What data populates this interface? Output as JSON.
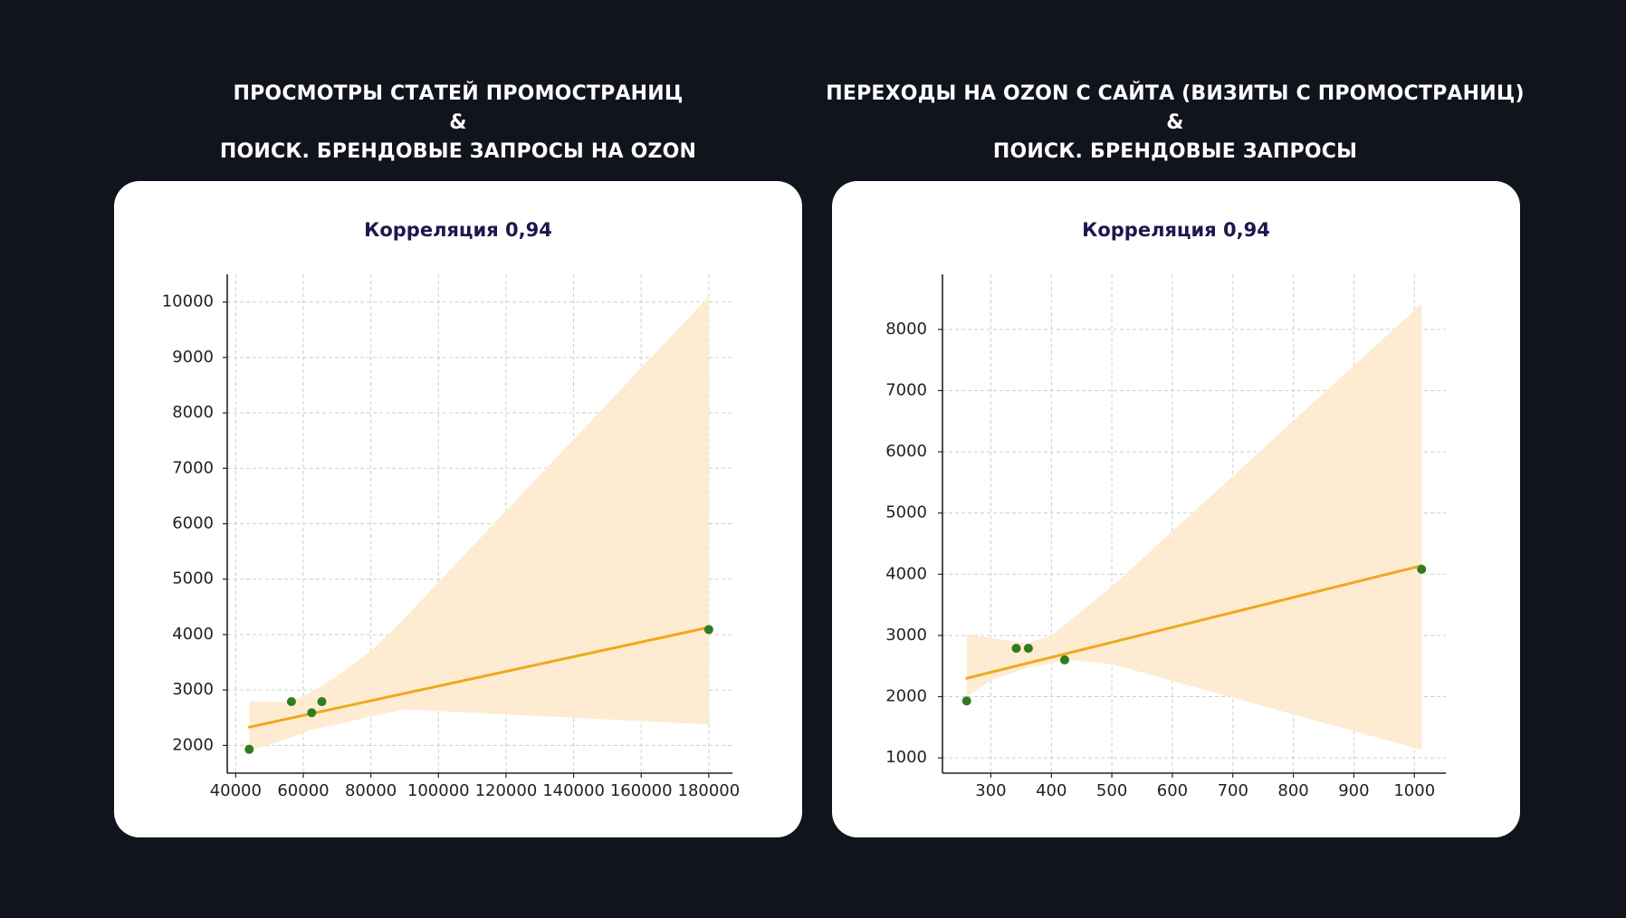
{
  "charts": [
    {
      "heading": {
        "line1": "ПРОСМОТРЫ СТАТЕЙ ПРОМОСТРАНИЦ",
        "line2": "&",
        "line3": "ПОИСК. БРЕНДОВЫЕ ЗАПРОСЫ НА OZON"
      },
      "title": "Корреляция 0,94"
    },
    {
      "heading": {
        "line1": "ПЕРЕХОДЫ НА OZON С САЙТА (ВИЗИТЫ С ПРОМОСТРАНИЦ)",
        "line2": "&",
        "line3": "ПОИСК. БРЕНДОВЫЕ ЗАПРОСЫ"
      },
      "title": "Корреляция 0,94"
    }
  ],
  "colors": {
    "background": "#11141c",
    "card": "#ffffff",
    "point": "#2e7d1f",
    "line": "#f0a81c",
    "band": "#fdebd0",
    "grid": "#cfcfcf",
    "title": "#1c1850"
  },
  "chart_data": [
    {
      "type": "scatter",
      "title": "Корреляция 0,94",
      "xlabel": "",
      "ylabel": "",
      "xlim": [
        37500,
        187000
      ],
      "ylim": [
        1500,
        10500
      ],
      "x_ticks": [
        40000,
        60000,
        80000,
        100000,
        120000,
        140000,
        160000,
        180000
      ],
      "y_ticks": [
        2000,
        3000,
        4000,
        5000,
        6000,
        7000,
        8000,
        9000,
        10000
      ],
      "grid": true,
      "points": [
        {
          "x": 44000,
          "y": 1930
        },
        {
          "x": 56500,
          "y": 2790
        },
        {
          "x": 62500,
          "y": 2590
        },
        {
          "x": 65500,
          "y": 2790
        },
        {
          "x": 180000,
          "y": 4090
        }
      ],
      "regression_line": [
        {
          "x": 44000,
          "y": 2330
        },
        {
          "x": 180000,
          "y": 4130
        }
      ],
      "confidence_band": {
        "upper": [
          {
            "x": 44000,
            "y": 2790
          },
          {
            "x": 50000,
            "y": 2790
          },
          {
            "x": 56000,
            "y": 2790
          },
          {
            "x": 62000,
            "y": 2950
          },
          {
            "x": 70000,
            "y": 3250
          },
          {
            "x": 80000,
            "y": 3700
          },
          {
            "x": 90000,
            "y": 4300
          },
          {
            "x": 180000,
            "y": 10100
          }
        ],
        "lower": [
          {
            "x": 180000,
            "y": 2380
          },
          {
            "x": 90000,
            "y": 2650
          },
          {
            "x": 80000,
            "y": 2520
          },
          {
            "x": 70000,
            "y": 2380
          },
          {
            "x": 62000,
            "y": 2280
          },
          {
            "x": 56000,
            "y": 2130
          },
          {
            "x": 50000,
            "y": 2020
          },
          {
            "x": 44000,
            "y": 1900
          }
        ]
      }
    },
    {
      "type": "scatter",
      "title": "Корреляция 0,94",
      "xlabel": "",
      "ylabel": "",
      "xlim": [
        220,
        1052
      ],
      "ylim": [
        750,
        8900
      ],
      "x_ticks": [
        300,
        400,
        500,
        600,
        700,
        800,
        900,
        1000
      ],
      "y_ticks": [
        1000,
        2000,
        3000,
        4000,
        5000,
        6000,
        7000,
        8000
      ],
      "grid": true,
      "points": [
        {
          "x": 260,
          "y": 1930
        },
        {
          "x": 342,
          "y": 2790
        },
        {
          "x": 362,
          "y": 2790
        },
        {
          "x": 422,
          "y": 2600
        },
        {
          "x": 1012,
          "y": 4080
        }
      ],
      "regression_line": [
        {
          "x": 260,
          "y": 2300
        },
        {
          "x": 1012,
          "y": 4140
        }
      ],
      "confidence_band": {
        "upper": [
          {
            "x": 260,
            "y": 3020
          },
          {
            "x": 300,
            "y": 2960
          },
          {
            "x": 360,
            "y": 2870
          },
          {
            "x": 400,
            "y": 3000
          },
          {
            "x": 500,
            "y": 3800
          },
          {
            "x": 1012,
            "y": 8420
          }
        ],
        "lower": [
          {
            "x": 1012,
            "y": 1130
          },
          {
            "x": 500,
            "y": 2530
          },
          {
            "x": 430,
            "y": 2600
          },
          {
            "x": 360,
            "y": 2470
          },
          {
            "x": 300,
            "y": 2270
          },
          {
            "x": 260,
            "y": 2000
          }
        ]
      }
    }
  ]
}
